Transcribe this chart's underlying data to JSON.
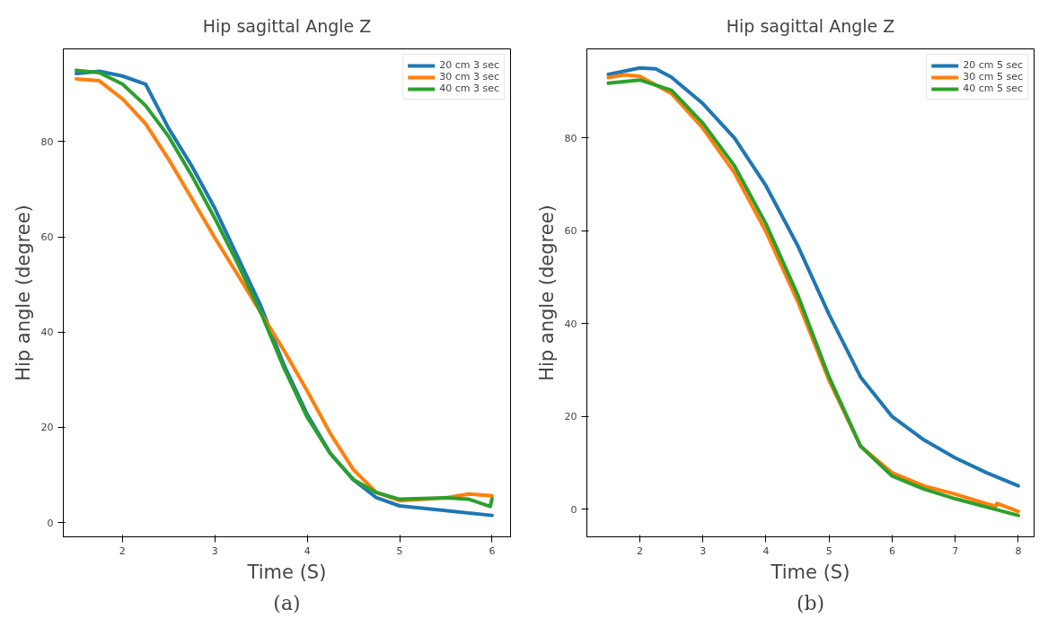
{
  "chart_data": [
    {
      "type": "line",
      "title": "Hip sagittal Angle Z",
      "xlabel": "Time (S)",
      "ylabel": "Hip angle (degree)",
      "annotations": [
        "(a)"
      ],
      "xlim": [
        1.36,
        6.2
      ],
      "ylim": [
        -3.0,
        99.5
      ],
      "xticks": [
        2,
        3,
        4,
        5,
        6
      ],
      "yticks": [
        0,
        20,
        40,
        60,
        80
      ],
      "grid": false,
      "legend": "top right",
      "series": [
        {
          "name": "20 cm 3 sec",
          "color": "#1f77b4",
          "x": [
            1.5,
            1.75,
            2.0,
            2.25,
            2.5,
            2.75,
            3.0,
            3.25,
            3.5,
            3.75,
            4.0,
            4.25,
            4.5,
            4.75,
            5.0,
            5.5,
            6.0
          ],
          "values": [
            94.3,
            94.8,
            93.8,
            92.1,
            82.8,
            74.9,
            66.0,
            55.7,
            45.4,
            33.0,
            22.7,
            14.5,
            9.0,
            5.2,
            3.5,
            2.5,
            1.5
          ]
        },
        {
          "name": "30 cm 3 sec",
          "color": "#ff7f0e",
          "x": [
            1.5,
            1.75,
            2.0,
            2.25,
            2.5,
            2.75,
            3.0,
            3.25,
            3.5,
            3.75,
            4.0,
            4.25,
            4.5,
            4.75,
            5.0,
            5.5,
            5.75,
            6.0
          ],
          "values": [
            93.2,
            92.8,
            89.0,
            83.8,
            76.3,
            68.1,
            59.8,
            52.0,
            44.0,
            36.1,
            27.6,
            18.7,
            11.1,
            6.3,
            4.6,
            5.2,
            6.0,
            5.6
          ]
        },
        {
          "name": "40 cm 3 sec",
          "color": "#2ca02c",
          "x": [
            1.5,
            1.75,
            2.0,
            2.25,
            2.5,
            2.75,
            3.0,
            3.25,
            3.5,
            3.75,
            4.0,
            4.25,
            4.5,
            4.75,
            5.0,
            5.5,
            5.75,
            5.98,
            6.0
          ],
          "values": [
            95.0,
            94.5,
            92.1,
            87.6,
            81.1,
            72.9,
            63.9,
            54.3,
            44.0,
            32.4,
            22.1,
            14.5,
            9.0,
            6.3,
            4.9,
            5.2,
            4.9,
            3.4,
            5.0
          ]
        }
      ]
    },
    {
      "type": "line",
      "title": "Hip sagittal Angle Z",
      "xlabel": "Time (S)",
      "ylabel": "Hip angle (degree)",
      "annotations": [
        "(b)"
      ],
      "xlim": [
        1.16,
        8.25
      ],
      "ylim": [
        -5.9,
        99.2
      ],
      "xticks": [
        2,
        3,
        4,
        5,
        6,
        7,
        8
      ],
      "yticks": [
        0,
        20,
        40,
        60,
        80
      ],
      "grid": false,
      "legend": "top right",
      "series": [
        {
          "name": "20 cm 5 sec",
          "color": "#1f77b4",
          "x": [
            1.5,
            2.0,
            2.25,
            2.5,
            3.0,
            3.5,
            4.0,
            4.5,
            5.0,
            5.5,
            6.0,
            6.5,
            7.0,
            7.5,
            8.0
          ],
          "values": [
            93.7,
            95.1,
            94.9,
            93.1,
            87.4,
            80.0,
            69.7,
            56.9,
            42.0,
            28.5,
            20.0,
            15.0,
            11.1,
            7.9,
            5.1
          ]
        },
        {
          "name": "30 cm 5 sec",
          "color": "#ff7f0e",
          "x": [
            1.5,
            1.75,
            2.0,
            2.5,
            3.0,
            3.5,
            4.0,
            4.5,
            5.0,
            5.5,
            6.0,
            6.5,
            7.0,
            7.5,
            7.65,
            7.66,
            8.0
          ],
          "values": [
            93.0,
            93.6,
            93.3,
            89.6,
            82.1,
            72.5,
            59.8,
            44.9,
            27.8,
            13.6,
            7.9,
            5.1,
            3.3,
            1.2,
            0.7,
            1.3,
            -0.4
          ]
        },
        {
          "name": "40 cm 5 sec",
          "color": "#2ca02c",
          "x": [
            1.5,
            2.0,
            2.5,
            3.0,
            3.5,
            4.0,
            4.5,
            5.0,
            5.5,
            6.0,
            6.5,
            7.0,
            7.5,
            8.0
          ],
          "values": [
            91.8,
            92.5,
            90.3,
            83.2,
            74.0,
            61.5,
            46.3,
            28.5,
            13.6,
            7.2,
            4.4,
            2.3,
            0.5,
            -1.3
          ]
        }
      ]
    }
  ]
}
